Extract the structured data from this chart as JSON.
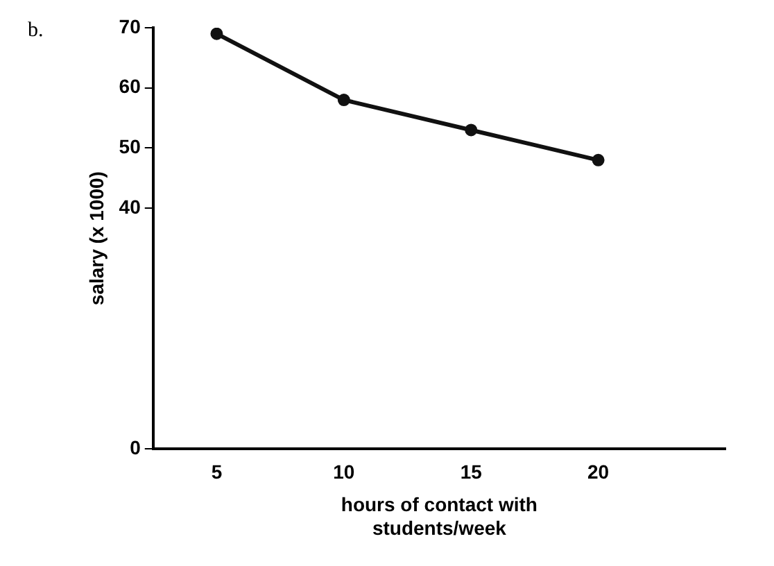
{
  "chart_data": {
    "type": "line",
    "annotations": [
      "b."
    ],
    "xlabel": "hours of contact with students/week",
    "ylabel": "salary (x 1000)",
    "x": [
      5,
      10,
      15,
      20
    ],
    "series": [
      {
        "color": "#111111",
        "values": [
          69,
          58,
          53,
          48
        ]
      }
    ],
    "xlim": [
      2.5,
      25
    ],
    "xticks": [
      5,
      10,
      15,
      20
    ],
    "ylim": [
      0,
      70
    ],
    "yticks": [
      0,
      40,
      50,
      60,
      70
    ],
    "grid": false,
    "legend": false,
    "marker": "circle",
    "line_style": "solid"
  }
}
